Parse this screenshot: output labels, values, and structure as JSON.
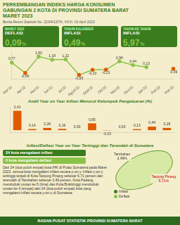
{
  "chart_data": [
    {
      "type": "line",
      "title": "PERKEMBANGAN INDEKS HARGA KONSUMEN\nGABUNGAN 2 KOTA DI PROVINSI SUMATERA BARAT\nMARET 2023",
      "subtitle": "Berita Resmi Statistik No. 22/04/13/Th. XXVI, 03 April 2023",
      "annotations": [
        [
          "MARET 2023",
          "DEFLASI",
          "0,09",
          "%"
        ],
        [
          "TAHUN KALENDER",
          "INFLASI",
          "0,49",
          "%"
        ],
        [
          "TAHUN KE TAHUN",
          "INFLASI",
          "5,97",
          "%"
        ]
      ],
      "categories": [
        "Mar'22",
        "Apr'22",
        "Mei'22",
        "Jun'22",
        "Jul'22",
        "Agust'22",
        "Sept'22",
        "Okt'22",
        "Nov'22",
        "Des'22",
        "Jan'23",
        "Feb'23",
        "Mar'23"
      ],
      "values": [
        0.77,
        -0.66,
        1.6,
        1.18,
        1.22,
        -0.95,
        -0.23,
        -0.21,
        0.94,
        0.44,
        0.13,
        null,
        -0.09
      ],
      "value_labels": [
        "0,77",
        "-0,66",
        "1,60",
        "1,18",
        "1,22",
        "-0,95",
        "-0,23",
        "-0,21",
        "0,94",
        "0,44",
        "0,13",
        null,
        "-0,09"
      ],
      "color": "#8bc34a",
      "colors": [
        "#8bc34a",
        "#e05a00",
        "#8bc34a",
        "#8bc34a",
        "#8bc34a",
        "#e05a00",
        "#e05a00",
        "#e05a00",
        "#8bc34a",
        "#8bc34a",
        "#8bc34a",
        "#8bc34a",
        "#e05a00"
      ],
      "marker": "circle",
      "ylim": [
        -1.5,
        2.2
      ],
      "grid": false,
      "data_labels": true,
      "tick_labels": "x"
    },
    {
      "type": "bar",
      "title": "Andil Year on Year Inflasi Menurut Kelompok Pengeluaran (%)",
      "annotations": [
        "Inflasi/Deflasi Year on Year Tertinggi dan Terendah di Sumatera",
        "24 kota mengalami inflasi",
        "0 kota mengalami deflasi",
        "Dari 24 (dua puluh empat) kota IHK di Pulau Sumatera pada Maret 2023, semua kota mengalami inflasi secara y-on-y. Inflasi y-on-y tertinggi terjadi di Kota Tanjung Pinang sebesar 6,71 persen dan terendah di Tambahan sebesar 3,49 persen. Kota Padang menduduki urutan ke 5 (lima) dan Kota Bukittinggi menduduki urutan ke 4 (empat) dari 24 (dua puluh empat) kota yang mengalami inflasi secara y-on-y di Sumatera.",
        "Tambahan\n3,49%",
        "Tanjung Pinang\n6,71%",
        "Inflasi",
        "Deflasi",
        "BADAN PUSAT STATISTIK PROVINSI SUMATERA BARAT"
      ],
      "categories": [
        null,
        null,
        null,
        null,
        null,
        null,
        null,
        null,
        null,
        null,
        null
      ],
      "values": [
        2.41,
        0.14,
        0.28,
        0.16,
        0.0,
        0.85,
        -0.03,
        0.0,
        0.13,
        0.44,
        0.28
      ],
      "value_labels": [
        "2,41",
        "0,14",
        "0,28",
        "0,16",
        "0,00",
        "0,85",
        "-0,03",
        "0,00",
        "0,13",
        "0,44",
        "0,28"
      ],
      "color": "#e05a00",
      "ylim": [
        -0.25,
        2.9
      ],
      "grid": false,
      "data_labels": true,
      "tick_labels": false
    }
  ]
}
